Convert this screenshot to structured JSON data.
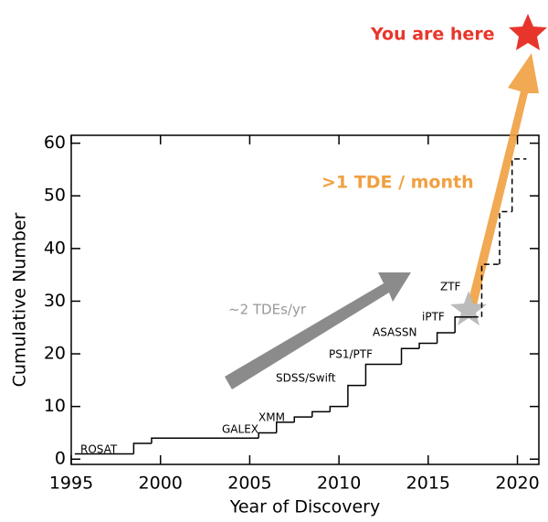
{
  "chart_data": {
    "type": "step",
    "xlabel": "Year of Discovery",
    "ylabel": "Cumulative Number",
    "xlim": [
      1995,
      2021.2
    ],
    "ylim": [
      -1,
      61.5
    ],
    "xticks": [
      1995,
      2000,
      2005,
      2010,
      2015,
      2020
    ],
    "yticks": [
      0,
      10,
      20,
      30,
      40,
      50,
      60
    ],
    "series": [
      {
        "x": [
          1995.2,
          1998.5,
          1999.5,
          2005.5,
          2006.5,
          2007.5,
          2008.5,
          2009.5,
          2010.5,
          2011.5,
          2013.5,
          2014.5,
          2015.5,
          2016.5,
          2017.5
        ],
        "values": [
          1,
          3,
          4,
          5,
          7,
          8,
          9,
          10,
          14,
          18,
          21,
          22,
          24,
          27,
          27
        ],
        "color": "#000000",
        "dashed": false
      },
      {
        "x": [
          2017.5,
          2018,
          2019,
          2019.7,
          2020.5
        ],
        "values": [
          27,
          37,
          47,
          57,
          57
        ],
        "color": "#000000",
        "dashed": true
      }
    ],
    "annotations": [
      "ROSAT",
      "GALEX",
      "XMM",
      "SDSS/Swift",
      "PS1/PTF",
      "ASASSN",
      "iPTF",
      "ZTF",
      "~2 TDEs/yr",
      ">1 TDE / month",
      "You are here"
    ]
  }
}
